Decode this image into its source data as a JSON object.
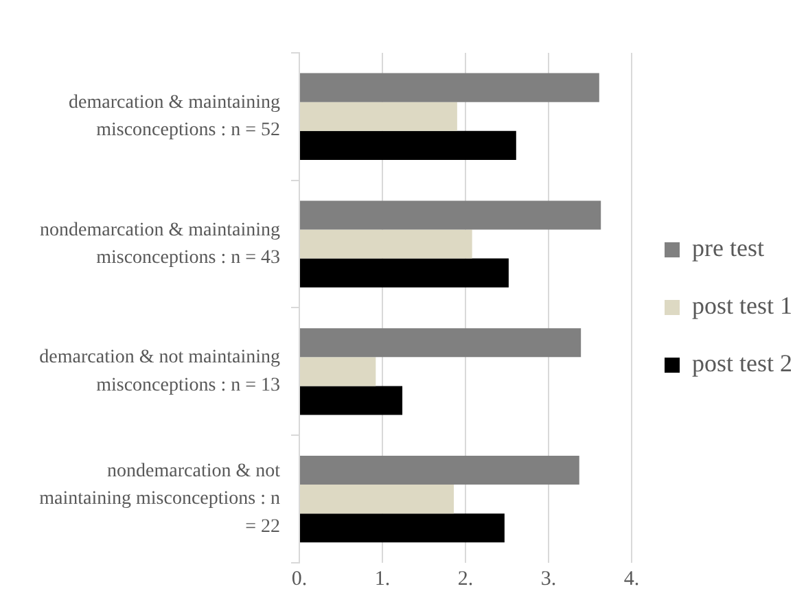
{
  "chart_data": {
    "type": "bar",
    "orientation": "horizontal",
    "categories": [
      "demarcation & maintaining misconceptions : n = 52",
      "nondemarcation & maintaining misconceptions : n = 43",
      "demarcation & not maintaining misconceptions : n = 13",
      "nondemarcation & not maintaining misconceptions : n = 22"
    ],
    "series": [
      {
        "name": "pre test",
        "color": "#808080",
        "values": [
          3.61,
          3.63,
          3.39,
          3.37
        ]
      },
      {
        "name": "post test 1",
        "color": "#ddd9c3",
        "values": [
          1.9,
          2.08,
          0.92,
          1.86
        ]
      },
      {
        "name": "post test 2",
        "color": "#000000",
        "values": [
          2.61,
          2.52,
          1.24,
          2.47
        ]
      }
    ],
    "xlim": [
      0,
      4
    ],
    "xticks": [
      {
        "value": 0,
        "label": "0."
      },
      {
        "value": 1,
        "label": "1."
      },
      {
        "value": 2,
        "label": "2."
      },
      {
        "value": 3,
        "label": "3."
      },
      {
        "value": 4,
        "label": "4."
      }
    ],
    "grid": "x",
    "legend": "right"
  }
}
